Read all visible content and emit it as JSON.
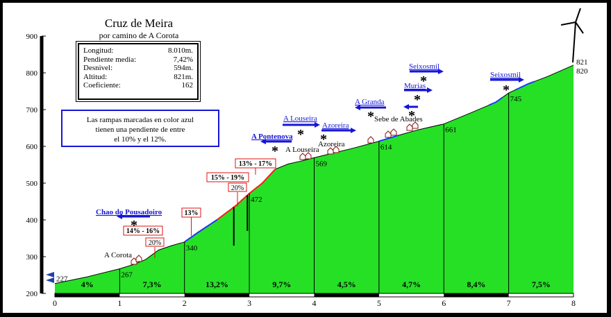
{
  "title": "Cruz de Meira",
  "subtitle": "por camino de A Corota",
  "info_box": [
    {
      "label": "Longitud:",
      "value": "8.010m."
    },
    {
      "label": "Pendiente media:",
      "value": "7,42%"
    },
    {
      "label": "Desnivel:",
      "value": "594m."
    },
    {
      "label": "Altitud:",
      "value": "821m."
    },
    {
      "label": "Coeficiente:",
      "value": "162"
    }
  ],
  "note": {
    "line1": "Las rampas marcadas en color azul",
    "line2": "tienen una pendiente de entre",
    "line3": "el 10% y el 12%."
  },
  "chart_data": {
    "type": "area",
    "title": "Cruz de Meira",
    "subtitle": "por camino de A Corota",
    "xlim": [
      0,
      8
    ],
    "ylim": [
      200,
      900
    ],
    "x_ticks": [
      0,
      1,
      2,
      3,
      4,
      5,
      6,
      7,
      8
    ],
    "y_ticks": [
      200,
      300,
      400,
      500,
      600,
      700,
      800,
      900
    ],
    "grid": false,
    "profile": {
      "x": [
        0,
        0.5,
        1,
        1.2,
        1.4,
        1.6,
        1.8,
        2,
        2.2,
        2.5,
        2.8,
        3,
        3.2,
        3.4,
        3.6,
        3.8,
        4,
        4.3,
        4.6,
        5,
        5.3,
        5.6,
        6,
        6.4,
        6.8,
        7,
        7.3,
        7.6,
        8
      ],
      "y": [
        227,
        245,
        267,
        278,
        292,
        318,
        330,
        340,
        365,
        400,
        440,
        472,
        500,
        538,
        552,
        560,
        569,
        582,
        595,
        614,
        630,
        645,
        661,
        690,
        720,
        745,
        770,
        790,
        821
      ]
    },
    "km_labels": [
      {
        "x": 0,
        "y": 227,
        "label": "227"
      },
      {
        "x": 1,
        "y": 267,
        "label": "267"
      },
      {
        "x": 2,
        "y": 340,
        "label": "340"
      },
      {
        "x": 3,
        "y": 472,
        "label": "472"
      },
      {
        "x": 4,
        "y": 569,
        "label": "569"
      },
      {
        "x": 5,
        "y": 614,
        "label": "614"
      },
      {
        "x": 6,
        "y": 661,
        "label": "661"
      },
      {
        "x": 7,
        "y": 745,
        "label": "745"
      }
    ],
    "summit_labels": [
      "821",
      "820"
    ],
    "segment_gradients": [
      "4%",
      "7,3%",
      "13,2%",
      "9,7%",
      "4,5%",
      "4,7%",
      "8,4%",
      "7,5%"
    ],
    "ramp_labels": [
      {
        "x": 1.4,
        "y": 290,
        "text": "14% - 16%",
        "sub": "20%"
      },
      {
        "x": 2.1,
        "y": 345,
        "text": "13%",
        "sub": ""
      },
      {
        "x": 2.75,
        "y": 445,
        "text": "15% - 19%",
        "sub": "20%"
      },
      {
        "x": 3.3,
        "y": 520,
        "text": "13% - 17%",
        "sub": ""
      }
    ],
    "blue_ramps": [
      {
        "x0": 2.0,
        "x1": 2.5
      },
      {
        "x0": 5.0,
        "x1": 5.3
      },
      {
        "x0": 6.7,
        "x1": 6.9
      },
      {
        "x0": 7.1,
        "x1": 7.4
      }
    ],
    "places": [
      {
        "x": 1.25,
        "y": 280,
        "text": "A Corota"
      },
      {
        "x": 3.8,
        "y": 565,
        "text": "A Louseira"
      },
      {
        "x": 4.3,
        "y": 583,
        "text": "Azoreira"
      },
      {
        "x": 5.5,
        "y": 630,
        "text": "Sebe de Abades"
      }
    ],
    "junctions": [
      {
        "x": 1.22,
        "y": 401,
        "text": "Chao do Pousadoiro",
        "dir": "left",
        "bold": true
      },
      {
        "x": 3.48,
        "y": 610,
        "text": "A Pontenova",
        "dir": "left",
        "bold": true
      },
      {
        "x": 4.02,
        "y": 657,
        "text": "A Louseira",
        "dir": "right",
        "bold": false
      },
      {
        "x": 4.42,
        "y": 637,
        "text": "Azoreira",
        "dir": "right",
        "bold": false
      },
      {
        "x": 5.12,
        "y": 722,
        "text": "A Granda",
        "dir": "left",
        "bold": false
      },
      {
        "x": 5.6,
        "y": 712,
        "text": "",
        "dir": "left",
        "bold": false
      },
      {
        "x": 5.65,
        "y": 770,
        "text": "Murias",
        "dir": "right",
        "bold": false
      },
      {
        "x": 5.78,
        "y": 805,
        "text": "Seixosmil",
        "dir": "right",
        "bold": false
      },
      {
        "x": 7.0,
        "y": 783,
        "text": "Seixosmil",
        "dir": "right",
        "bold": false
      }
    ]
  }
}
